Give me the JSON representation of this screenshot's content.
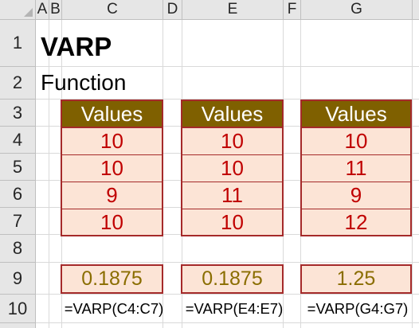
{
  "columns": [
    "A",
    "B",
    "C",
    "D",
    "E",
    "F",
    "G"
  ],
  "rows": [
    "1",
    "2",
    "3",
    "4",
    "5",
    "6",
    "7",
    "8",
    "9",
    "10"
  ],
  "title": "VARP",
  "subtitle": "Function",
  "tables": [
    {
      "header": "Values",
      "values": [
        "10",
        "10",
        "9",
        "10"
      ],
      "result": "0.1875",
      "formula": "=VARP(C4:C7)"
    },
    {
      "header": "Values",
      "values": [
        "10",
        "10",
        "11",
        "10"
      ],
      "result": "0.1875",
      "formula": "=VARP(E4:E7)"
    },
    {
      "header": "Values",
      "values": [
        "10",
        "11",
        "9",
        "12"
      ],
      "result": "1.25",
      "formula": "=VARP(G4:G7)"
    }
  ],
  "colors": {
    "header_fill": "#7f6000",
    "cell_fill": "#fce4d6",
    "border": "#a52a2a",
    "value_text": "#c00000",
    "result_text": "#8a6d00"
  }
}
